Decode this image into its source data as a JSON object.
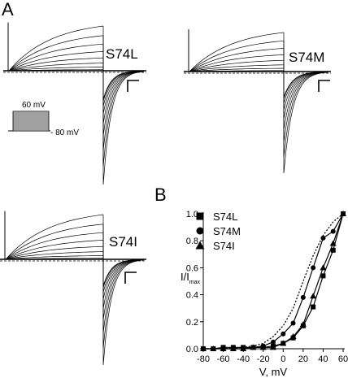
{
  "panel_letters": {
    "a": "A",
    "b": "B"
  },
  "traces": [
    {
      "label": "S74L"
    },
    {
      "label": "S74M"
    },
    {
      "label": "S74I"
    }
  ],
  "protocol": {
    "top_label": "60 mV",
    "bottom_label": "- 80 mV"
  },
  "chart_data": {
    "type": "line",
    "title": "",
    "xlabel": "V, mV",
    "ylabel_main": "I/I",
    "ylabel_sub": "max",
    "xlim": [
      -80,
      60
    ],
    "ylim": [
      0.0,
      1.0
    ],
    "x_ticks": [
      "-80",
      "-60",
      "-40",
      "-20",
      "0",
      "20",
      "40",
      "60"
    ],
    "y_ticks": [
      "0.0",
      "0.2",
      "0.4",
      "0.6",
      "0.8",
      "1.0"
    ],
    "legend_position": "top-left",
    "x": [
      -80,
      -70,
      -60,
      -50,
      -40,
      -30,
      -20,
      -10,
      0,
      10,
      20,
      30,
      40,
      50,
      60
    ],
    "series": [
      {
        "name": "S74L",
        "marker": "square",
        "values": [
          0.0,
          0.0,
          0.01,
          0.01,
          0.01,
          0.01,
          0.01,
          0.02,
          0.04,
          0.08,
          0.17,
          0.31,
          0.54,
          0.73,
          1.0
        ]
      },
      {
        "name": "S74M",
        "marker": "circle",
        "values": [
          0.0,
          0.0,
          0.0,
          0.0,
          0.0,
          0.01,
          0.02,
          0.05,
          0.11,
          0.19,
          0.38,
          0.6,
          0.82,
          0.87,
          1.0
        ]
      },
      {
        "name": "S74I",
        "marker": "triangle",
        "values": [
          0.0,
          0.0,
          0.0,
          0.0,
          0.0,
          0.01,
          0.01,
          0.01,
          0.04,
          0.09,
          0.18,
          0.39,
          0.6,
          0.78,
          1.0
        ]
      }
    ],
    "reference_curve": {
      "style": "dotted",
      "x": [
        -80,
        -60,
        -40,
        -30,
        -20,
        -10,
        0,
        10,
        20,
        30,
        40,
        50,
        60
      ],
      "values": [
        0.0,
        0.0,
        0.01,
        0.02,
        0.04,
        0.09,
        0.17,
        0.3,
        0.5,
        0.69,
        0.84,
        0.94,
        1.0
      ]
    }
  }
}
